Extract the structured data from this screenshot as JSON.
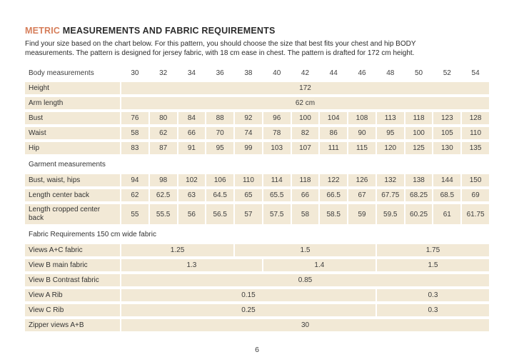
{
  "header": {
    "title_accent": "METRIC",
    "title_rest": " MEASUREMENTS AND FABRIC REQUIREMENTS",
    "intro_line1": "Find your size based on the chart below. For this pattern, you should choose the size that best fits your chest and hip BODY",
    "intro_line2": "measurements. The pattern is designed for jersey fabric, with 18 cm ease in chest. The pattern is drafted for 172 cm height."
  },
  "colors": {
    "accent_orange": "#d67e5a",
    "cell_beige": "#f2e9d6",
    "text_dark": "#2e2e2e"
  },
  "table": {
    "size_header_label": "Body measurements",
    "sizes": [
      "30",
      "32",
      "34",
      "36",
      "38",
      "40",
      "42",
      "44",
      "46",
      "48",
      "50",
      "52",
      "54"
    ],
    "height": {
      "label": "Height",
      "value": "172"
    },
    "arm_length": {
      "label": "Arm length",
      "value": "62 cm"
    },
    "bust": {
      "label": "Bust",
      "values": [
        "76",
        "80",
        "84",
        "88",
        "92",
        "96",
        "100",
        "104",
        "108",
        "113",
        "118",
        "123",
        "128"
      ]
    },
    "waist": {
      "label": "Waist",
      "values": [
        "58",
        "62",
        "66",
        "70",
        "74",
        "78",
        "82",
        "86",
        "90",
        "95",
        "100",
        "105",
        "110"
      ]
    },
    "hip": {
      "label": "Hip",
      "values": [
        "83",
        "87",
        "91",
        "95",
        "99",
        "103",
        "107",
        "111",
        "115",
        "120",
        "125",
        "130",
        "135"
      ]
    },
    "garment_section": "Garment measurements",
    "garment_bwh": {
      "label": "Bust, waist, hips",
      "values": [
        "94",
        "98",
        "102",
        "106",
        "110",
        "114",
        "118",
        "122",
        "126",
        "132",
        "138",
        "144",
        "150"
      ]
    },
    "length_center_back": {
      "label": "Length center back",
      "values": [
        "62",
        "62.5",
        "63",
        "64.5",
        "65",
        "65.5",
        "66",
        "66.5",
        "67",
        "67.75",
        "68.25",
        "68.5",
        "69"
      ]
    },
    "length_cropped": {
      "label": "Length cropped center back",
      "values": [
        "55",
        "55.5",
        "56",
        "56.5",
        "57",
        "57.5",
        "58",
        "58.5",
        "59",
        "59.5",
        "60.25",
        "61",
        "61.75"
      ]
    },
    "fabric_section": "Fabric Requirements 150 cm wide fabric",
    "views_ac": {
      "label": "Views A+C fabric",
      "spans": [
        {
          "v": "1.25"
        },
        {
          "v": "1.5"
        },
        {
          "v": "1.75"
        }
      ]
    },
    "view_b_main": {
      "label": "View B main fabric",
      "spans": [
        {
          "v": "1.3"
        },
        {
          "v": "1.4"
        },
        {
          "v": "1.5"
        }
      ]
    },
    "view_b_contrast": {
      "label": "View B Contrast fabric",
      "value": "0.85"
    },
    "view_a_rib": {
      "label": "View A  Rib",
      "spans": [
        {
          "v": "0.15"
        },
        {
          "v": "0.3"
        }
      ]
    },
    "view_c_rib": {
      "label": "View C Rib",
      "spans": [
        {
          "v": "0.25"
        },
        {
          "v": "0.3"
        }
      ]
    },
    "zipper": {
      "label": "Zipper views A+B",
      "value": "30"
    }
  },
  "footer": {
    "page_number": "6"
  }
}
